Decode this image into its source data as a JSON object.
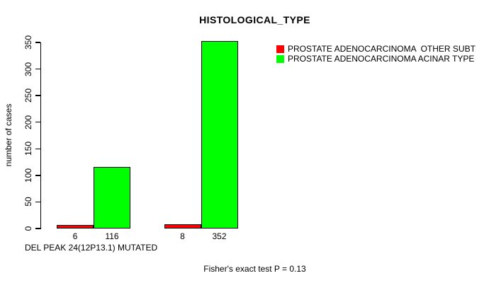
{
  "chart_data": {
    "type": "bar",
    "title": "HISTOLOGICAL_TYPE",
    "ylabel": "number of cases",
    "xlabel": "DEL PEAK 24(12P13.1) MUTATED",
    "footer": "Fisher's exact test P = 0.13",
    "ylim": [
      0,
      350
    ],
    "yticks": [
      0,
      50,
      100,
      150,
      200,
      250,
      300,
      350
    ],
    "grid": false,
    "legend_position": "top-right",
    "series": [
      {
        "name": "PROSTATE ADENOCARCINOMA  OTHER SUBT",
        "color": "#FF0000",
        "values": [
          6,
          8
        ],
        "labels": [
          "6",
          "8"
        ]
      },
      {
        "name": "PROSTATE ADENOCARCINOMA ACINAR TYPE",
        "color": "#00FF00",
        "values": [
          116,
          352
        ],
        "labels": [
          "116",
          "352"
        ]
      }
    ],
    "legend": [
      {
        "label": "PROSTATE ADENOCARCINOMA  OTHER SUBT",
        "color": "#FF0000"
      },
      {
        "label": "PROSTATE ADENOCARCINOMA ACINAR TYPE",
        "color": "#00FF00"
      }
    ],
    "colors": {
      "bar_red": "#FF0000",
      "bar_green": "#00FF00",
      "axis": "#000000",
      "background": "#FFFFFF"
    }
  }
}
